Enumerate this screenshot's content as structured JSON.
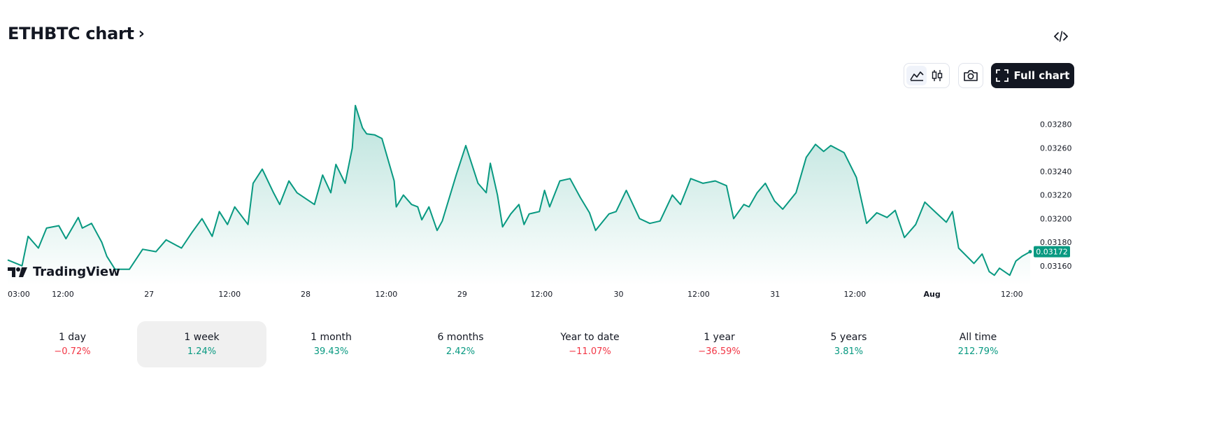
{
  "header": {
    "title": "ETHBTC chart",
    "chevron": "›",
    "embed_icon": "code-icon"
  },
  "toolbar": {
    "chart_types": [
      {
        "name": "line-chart-icon",
        "active": true
      },
      {
        "name": "candles-chart-icon",
        "active": false
      }
    ],
    "snapshot_icon": "camera-icon",
    "full_chart_label": "Full chart",
    "full_chart_icon": "fullscreen-icon"
  },
  "brand": {
    "name": "TradingView"
  },
  "colors": {
    "line": "#089981",
    "fill": "#089981",
    "positive": "#089981",
    "negative": "#f23645",
    "price_tag": "#089981"
  },
  "chart_data": {
    "type": "area",
    "title": "ETHBTC",
    "symbol": "ETHBTC",
    "interval": "1 week",
    "ylim": [
      0.03148,
      0.033
    ],
    "y_ticks": [
      "0.03280",
      "0.03260",
      "0.03240",
      "0.03220",
      "0.03200",
      "0.03180",
      "0.03160"
    ],
    "x_ticks": [
      {
        "label": "03:00",
        "t": 0.0
      },
      {
        "label": "12:00",
        "t": 0.054
      },
      {
        "label": "27",
        "t": 0.1383
      },
      {
        "label": "12:00",
        "t": 0.217
      },
      {
        "label": "28",
        "t": 0.2914
      },
      {
        "label": "12:00",
        "t": 0.3703
      },
      {
        "label": "29",
        "t": 0.4445
      },
      {
        "label": "12:00",
        "t": 0.5222
      },
      {
        "label": "30",
        "t": 0.5975
      },
      {
        "label": "12:00",
        "t": 0.6757
      },
      {
        "label": "31",
        "t": 0.7505
      },
      {
        "label": "12:00",
        "t": 0.8286
      },
      {
        "label": "Aug",
        "t": 0.904
      },
      {
        "label": "12:00",
        "t": 0.9821
      }
    ],
    "last_value": "0.03172",
    "series": [
      {
        "name": "ETHBTC",
        "t": [
          0.0,
          0.014,
          0.02,
          0.03,
          0.038,
          0.05,
          0.057,
          0.069,
          0.073,
          0.082,
          0.092,
          0.097,
          0.105,
          0.115,
          0.119,
          0.132,
          0.145,
          0.155,
          0.17,
          0.18,
          0.19,
          0.2,
          0.207,
          0.215,
          0.222,
          0.235,
          0.24,
          0.249,
          0.26,
          0.266,
          0.275,
          0.283,
          0.3,
          0.308,
          0.316,
          0.321,
          0.33,
          0.337,
          0.34,
          0.347,
          0.351,
          0.359,
          0.366,
          0.378,
          0.38,
          0.387,
          0.395,
          0.401,
          0.405,
          0.412,
          0.42,
          0.425,
          0.439,
          0.448,
          0.46,
          0.468,
          0.472,
          0.479,
          0.484,
          0.492,
          0.5,
          0.505,
          0.51,
          0.52,
          0.525,
          0.53,
          0.54,
          0.55,
          0.56,
          0.569,
          0.575,
          0.588,
          0.595,
          0.605,
          0.618,
          0.628,
          0.638,
          0.65,
          0.658,
          0.668,
          0.68,
          0.692,
          0.703,
          0.71,
          0.72,
          0.725,
          0.733,
          0.741,
          0.75,
          0.758,
          0.771,
          0.781,
          0.79,
          0.798,
          0.805,
          0.818,
          0.83,
          0.84,
          0.85,
          0.86,
          0.868,
          0.877,
          0.888,
          0.897,
          0.908,
          0.918,
          0.924,
          0.93,
          0.945,
          0.953,
          0.96,
          0.965,
          0.97,
          0.98,
          0.986,
          0.992,
          1.0
        ],
        "values": [
          0.03165,
          0.0316,
          0.03185,
          0.03175,
          0.03192,
          0.03194,
          0.03183,
          0.03201,
          0.03192,
          0.03196,
          0.0318,
          0.03168,
          0.03157,
          0.03157,
          0.03157,
          0.03174,
          0.03172,
          0.03182,
          0.03175,
          0.03188,
          0.032,
          0.03185,
          0.03206,
          0.03195,
          0.0321,
          0.03195,
          0.0323,
          0.03242,
          0.03222,
          0.03212,
          0.03232,
          0.03222,
          0.03212,
          0.03237,
          0.03222,
          0.03246,
          0.0323,
          0.0326,
          0.03296,
          0.03277,
          0.03272,
          0.03271,
          0.03268,
          0.03232,
          0.0321,
          0.0322,
          0.03212,
          0.0321,
          0.03199,
          0.0321,
          0.0319,
          0.03198,
          0.03238,
          0.03262,
          0.0323,
          0.03222,
          0.03247,
          0.0322,
          0.03193,
          0.03204,
          0.03212,
          0.03195,
          0.03204,
          0.03206,
          0.03224,
          0.0321,
          0.03232,
          0.03234,
          0.03218,
          0.03205,
          0.0319,
          0.03204,
          0.03206,
          0.03224,
          0.032,
          0.03196,
          0.03198,
          0.0322,
          0.03212,
          0.03234,
          0.0323,
          0.03232,
          0.03228,
          0.032,
          0.03212,
          0.0321,
          0.03222,
          0.0323,
          0.03215,
          0.03208,
          0.03222,
          0.03252,
          0.03263,
          0.03257,
          0.03262,
          0.03256,
          0.03235,
          0.03196,
          0.03205,
          0.03201,
          0.03207,
          0.03184,
          0.03195,
          0.03214,
          0.03205,
          0.03197,
          0.03206,
          0.03175,
          0.03162,
          0.0317,
          0.03155,
          0.03152,
          0.03158,
          0.03152,
          0.03164,
          0.03168,
          0.03172
        ]
      }
    ]
  },
  "periods": [
    {
      "label": "1 day",
      "change": "−0.72%",
      "sign": "neg",
      "active": false
    },
    {
      "label": "1 week",
      "change": "1.24%",
      "sign": "pos",
      "active": true
    },
    {
      "label": "1 month",
      "change": "39.43%",
      "sign": "pos",
      "active": false
    },
    {
      "label": "6 months",
      "change": "2.42%",
      "sign": "pos",
      "active": false
    },
    {
      "label": "Year to date",
      "change": "−11.07%",
      "sign": "neg",
      "active": false
    },
    {
      "label": "1 year",
      "change": "−36.59%",
      "sign": "neg",
      "active": false
    },
    {
      "label": "5 years",
      "change": "3.81%",
      "sign": "pos",
      "active": false
    },
    {
      "label": "All time",
      "change": "212.79%",
      "sign": "pos",
      "active": false
    }
  ]
}
